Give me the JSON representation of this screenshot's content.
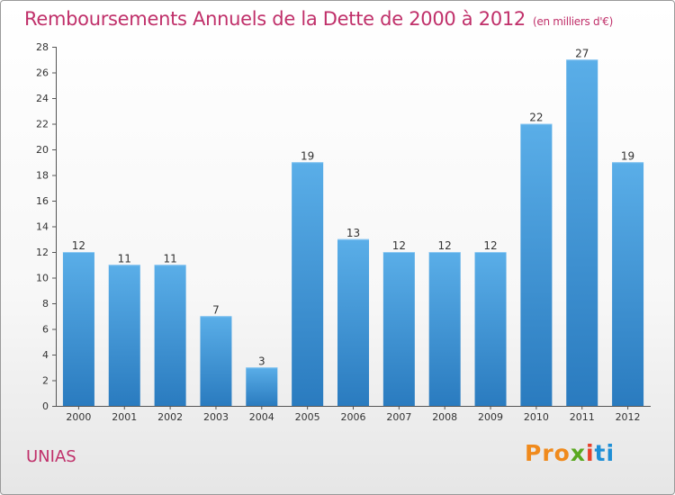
{
  "chart_data": {
    "type": "bar",
    "title": "Remboursements Annuels de la Dette de 2000 à 2012",
    "unit_note": "(en milliers d'€)",
    "categories": [
      "2000",
      "2001",
      "2002",
      "2003",
      "2004",
      "2005",
      "2006",
      "2007",
      "2008",
      "2009",
      "2010",
      "2011",
      "2012"
    ],
    "values": [
      12,
      11,
      11,
      7,
      3,
      19,
      13,
      12,
      12,
      12,
      22,
      27,
      19
    ],
    "ylim": [
      0,
      28
    ],
    "yticks": [
      0,
      2,
      4,
      6,
      8,
      10,
      12,
      14,
      16,
      18,
      20,
      22,
      24,
      26,
      28
    ],
    "grid": false,
    "bar_color_top": "#5aaee8",
    "bar_color_bottom": "#2a7bbf"
  },
  "footer": {
    "commune": "UNIAS",
    "logo": [
      "Pro",
      "x",
      "i",
      "ti"
    ]
  }
}
